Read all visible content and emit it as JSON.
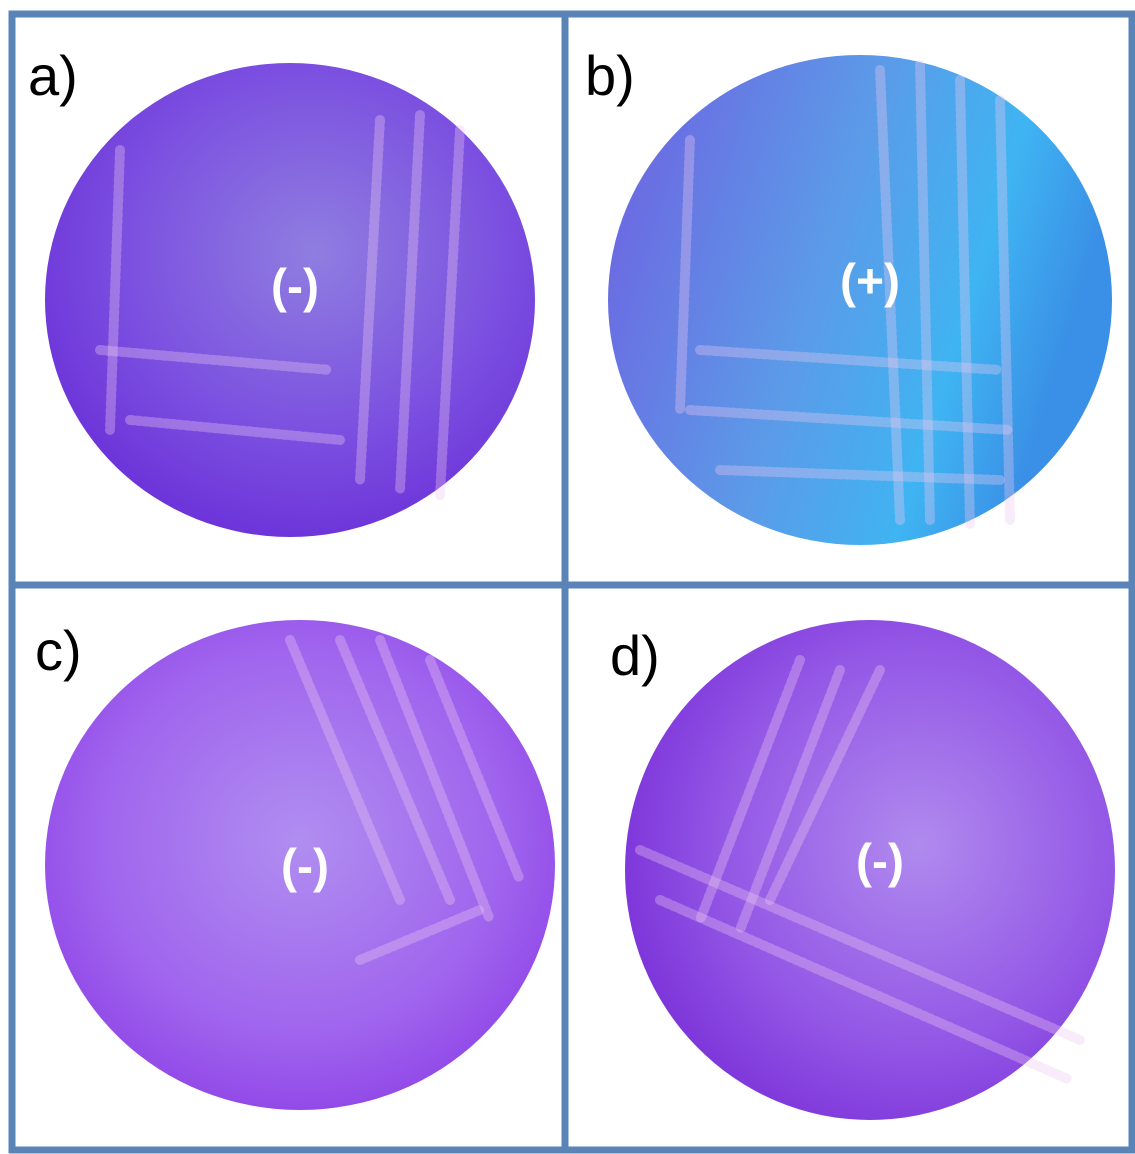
{
  "panels": [
    {
      "label": "a)",
      "result": "(-)"
    },
    {
      "label": "b)",
      "result": "(+)"
    },
    {
      "label": "c)",
      "result": "(-)"
    },
    {
      "label": "d)",
      "result": "(-)"
    }
  ]
}
